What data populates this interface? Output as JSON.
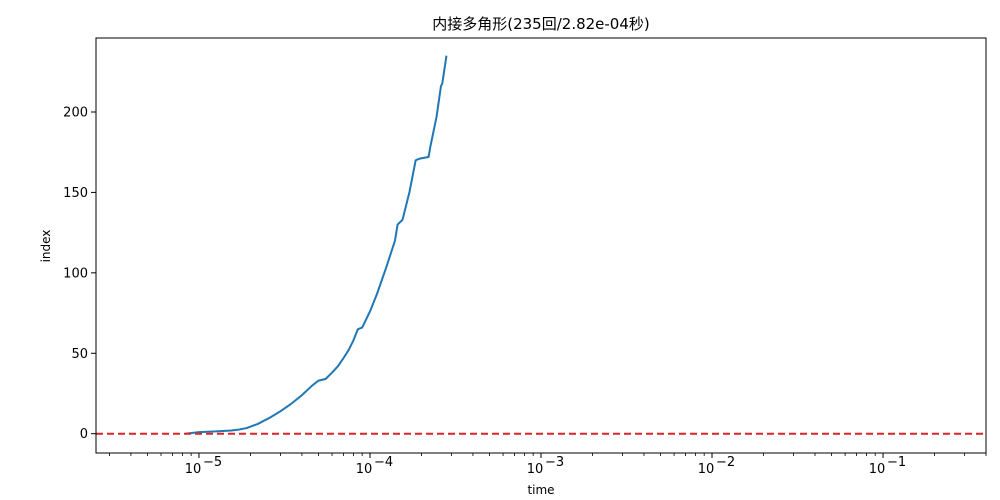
{
  "chart_data": {
    "type": "line",
    "title": "内接多角形(235回/2.82e-04秒)",
    "xlabel": "time",
    "ylabel": "index",
    "xscale": "log",
    "xlim": [
      2.5e-06,
      0.4
    ],
    "ylim": [
      -12,
      246
    ],
    "grid": false,
    "x_ticks": [
      {
        "value": 1e-05,
        "base": "10",
        "exp": "−5"
      },
      {
        "value": 0.0001,
        "base": "10",
        "exp": "−4"
      },
      {
        "value": 0.001,
        "base": "10",
        "exp": "−3"
      },
      {
        "value": 0.01,
        "base": "10",
        "exp": "−2"
      },
      {
        "value": 0.1,
        "base": "10",
        "exp": "−1"
      }
    ],
    "y_ticks": [
      0,
      50,
      100,
      150,
      200
    ],
    "series": [
      {
        "color": "#1f77b4",
        "x": [
          8.3e-06,
          1e-05,
          1.3e-05,
          1.55e-05,
          1.7e-05,
          1.9e-05,
          2.2e-05,
          2.6e-05,
          3e-05,
          3.5e-05,
          4e-05,
          4.6e-05,
          5e-05,
          5.5e-05,
          6e-05,
          6.5e-05,
          7e-05,
          7.5e-05,
          8e-05,
          8.5e-05,
          9e-05,
          0.0001,
          0.00011,
          0.000125,
          0.00014,
          0.000145,
          0.000155,
          0.00017,
          0.000185,
          0.000195,
          0.00022,
          0.000225,
          0.000245,
          0.00026,
          0.000265,
          0.00028
        ],
        "y": [
          0,
          1,
          1.5,
          2,
          2.5,
          3.5,
          6,
          10,
          14,
          19,
          24,
          30,
          33,
          34,
          38,
          42,
          47,
          52,
          58,
          65,
          66,
          76,
          87,
          104,
          120,
          130,
          133,
          150,
          170,
          171,
          172,
          178,
          197,
          216,
          218,
          235
        ]
      }
    ],
    "reference_line": {
      "y": 0,
      "color": "#d62728",
      "style": "dashed"
    }
  }
}
